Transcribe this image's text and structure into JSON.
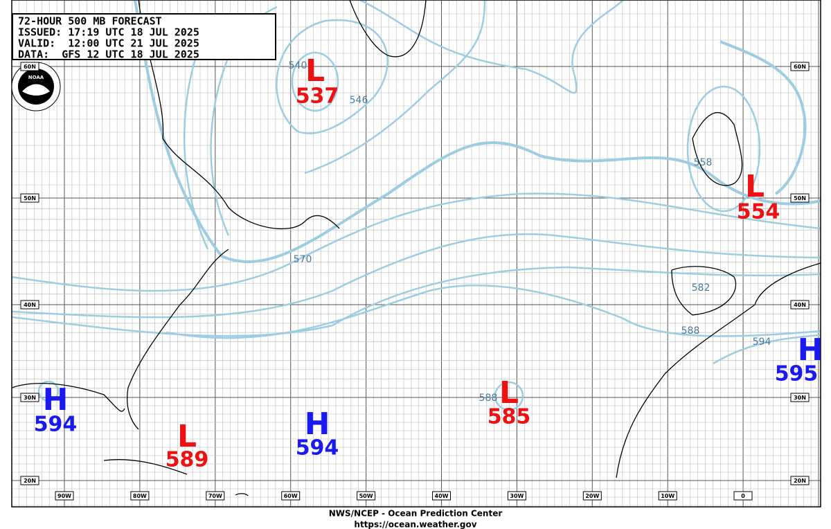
{
  "header": {
    "lines": [
      "72-HOUR 500 MB FORECAST",
      "ISSUED: 17:19 UTC 18 JUL 2025",
      "VALID:  12:00 UTC 21 JUL 2025",
      "DATA:  GFS 12 UTC 18 JUL 2025"
    ]
  },
  "logo": "NOAA",
  "centers": [
    {
      "symbol": "L",
      "value": "537"
    },
    {
      "symbol": "L",
      "value": "554"
    },
    {
      "symbol": "L",
      "value": "585"
    },
    {
      "symbol": "L",
      "value": "589"
    },
    {
      "symbol": "H",
      "value": "594"
    },
    {
      "symbol": "H",
      "value": "594"
    },
    {
      "symbol": "H",
      "value": "595"
    }
  ],
  "contour_labels": [
    "540",
    "546",
    "558",
    "570",
    "582",
    "588",
    "594",
    "588"
  ],
  "longitude_labels": [
    "90W",
    "80W",
    "70W",
    "60W",
    "50W",
    "40W",
    "30W",
    "20W",
    "10W",
    "0"
  ],
  "latitude_labels": [
    "60N",
    "50N",
    "40N",
    "30N",
    "20N"
  ],
  "footer": {
    "agency": "NWS/NCEP - Ocean Prediction Center",
    "url": "https://ocean.weather.gov"
  }
}
